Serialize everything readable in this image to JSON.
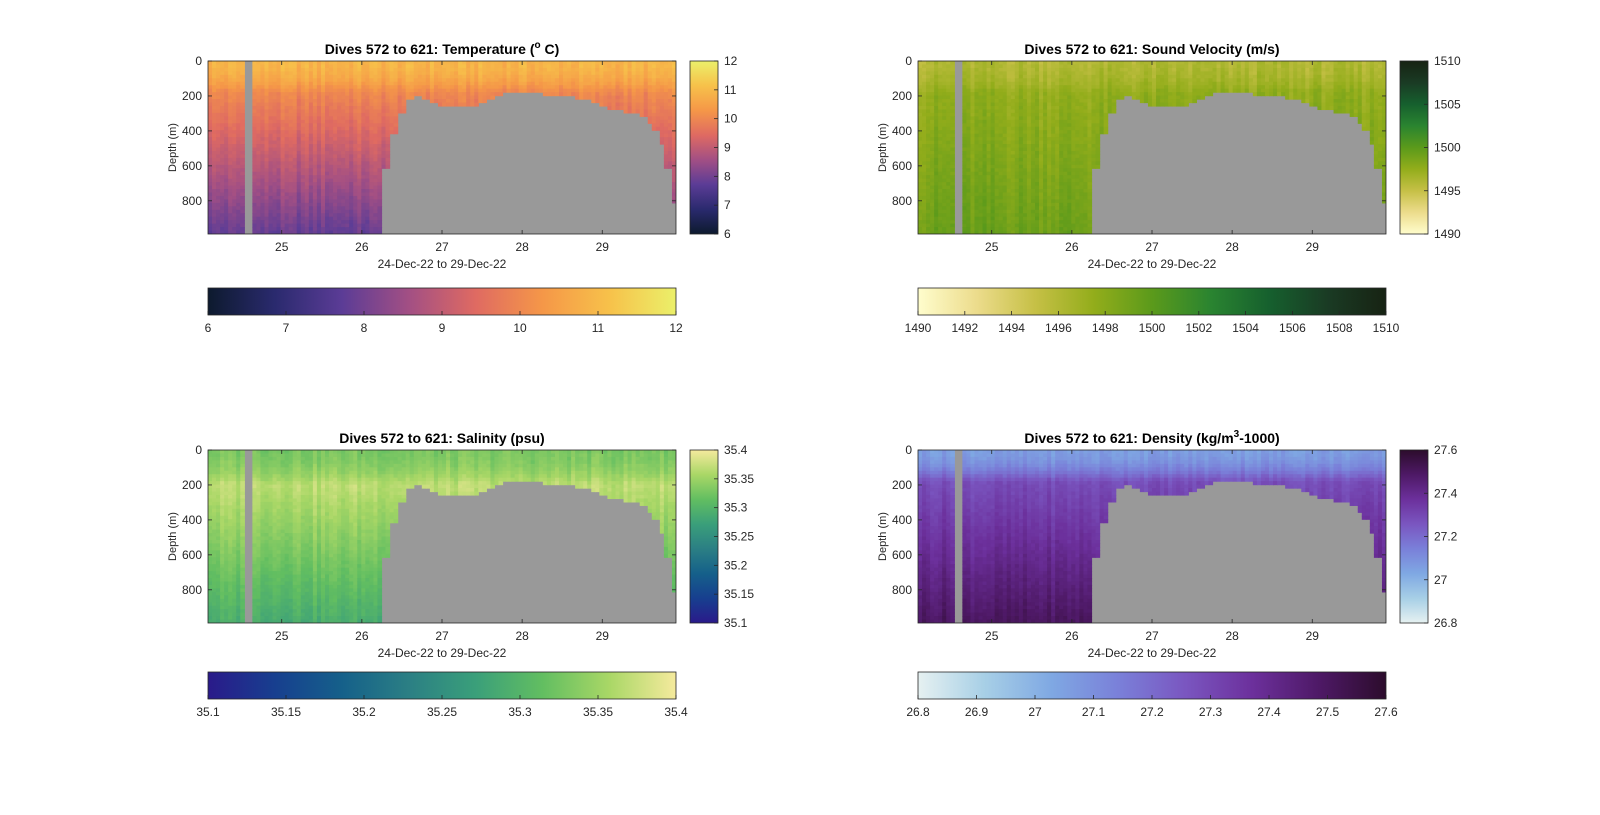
{
  "chart_data": [
    {
      "type": "heatmap",
      "title": "Dives 572 to 621: Temperature (",
      "title_sup": "o",
      "title_suffix": " C)",
      "xlabel": "24-Dec-22 to 29-Dec-22",
      "ylabel": "Depth (m)",
      "xlim": [
        24.08,
        29.92
      ],
      "ylim": [
        0,
        990
      ],
      "y_reversed": true,
      "x_ticks": [
        "25",
        "26",
        "27",
        "28",
        "29"
      ],
      "y_ticks": [
        "0",
        "200",
        "400",
        "600",
        "800"
      ],
      "colormap": "thermal",
      "colormap_stops": [
        "#0d1a2e",
        "#2a2a6e",
        "#5b3c96",
        "#a24f84",
        "#df6a62",
        "#f59748",
        "#f7c14a",
        "#ebf06a"
      ],
      "clim": [
        6,
        12
      ],
      "colorbar_right_ticks": [
        "6",
        "7",
        "8",
        "9",
        "10",
        "11",
        "12"
      ],
      "colorbar_bottom_ticks": [
        "6",
        "7",
        "8",
        "9",
        "10",
        "11",
        "12"
      ],
      "surface_value": 10.9,
      "mid_value": 10.0,
      "deep_value": 7.8,
      "thermocline_depth": 180,
      "no_data_color": "#999999",
      "data_gap": [
        24.52,
        24.62
      ]
    },
    {
      "type": "heatmap",
      "title": "Dives 572 to 621: Sound Velocity (m/s)",
      "title_sup": "",
      "title_suffix": "",
      "xlabel": "24-Dec-22 to 29-Dec-22",
      "ylabel": "Depth (m)",
      "xlim": [
        24.08,
        29.92
      ],
      "ylim": [
        0,
        990
      ],
      "y_reversed": true,
      "x_ticks": [
        "25",
        "26",
        "27",
        "28",
        "29"
      ],
      "y_ticks": [
        "0",
        "200",
        "400",
        "600",
        "800"
      ],
      "colormap": "speed",
      "colormap_stops": [
        "#fffdcd",
        "#ecdc8c",
        "#c6c046",
        "#93ad1b",
        "#5b9a1b",
        "#2a8430",
        "#16602e",
        "#1a3b24",
        "#172313"
      ],
      "clim": [
        1490,
        1510
      ],
      "colorbar_right_ticks": [
        "1490",
        "1495",
        "1500",
        "1505",
        "1510"
      ],
      "colorbar_bottom_ticks": [
        "1490",
        "1492",
        "1494",
        "1496",
        "1498",
        "1500",
        "1502",
        "1504",
        "1506",
        "1508",
        "1510"
      ],
      "surface_value": 1496.0,
      "mid_value": 1497.5,
      "deep_value": 1499.3,
      "thermocline_depth": 180,
      "no_data_color": "#999999",
      "data_gap": [
        24.52,
        24.62
      ]
    },
    {
      "type": "heatmap",
      "title": "Dives 572 to 621: Salinity (psu)",
      "title_sup": "",
      "title_suffix": "",
      "xlabel": "24-Dec-22 to 29-Dec-22",
      "ylabel": "Depth (m)",
      "xlim": [
        24.08,
        29.92
      ],
      "ylim": [
        0,
        990
      ],
      "y_reversed": true,
      "x_ticks": [
        "25",
        "26",
        "27",
        "28",
        "29"
      ],
      "y_ticks": [
        "0",
        "200",
        "400",
        "600",
        "800"
      ],
      "colormap": "haline",
      "colormap_stops": [
        "#2a1a8a",
        "#173f8f",
        "#15608a",
        "#2b7f84",
        "#3a9f7a",
        "#62be61",
        "#a9d766",
        "#f5ea9d"
      ],
      "clim": [
        35.1,
        35.4
      ],
      "colorbar_right_ticks": [
        "35.1",
        "35.15",
        "35.2",
        "35.25",
        "35.3",
        "35.35",
        "35.4"
      ],
      "colorbar_bottom_ticks": [
        "35.1",
        "35.15",
        "35.2",
        "35.25",
        "35.3",
        "35.35",
        "35.4"
      ],
      "surface_value": 35.33,
      "mid_value": 35.37,
      "deep_value": 35.29,
      "thermocline_depth": 200,
      "no_data_color": "#999999",
      "data_gap": [
        24.52,
        24.62
      ]
    },
    {
      "type": "heatmap",
      "title": "Dives 572 to 621: Density (kg/m",
      "title_sup": "3",
      "title_suffix": "-1000)",
      "xlabel": "24-Dec-22 to 29-Dec-22",
      "ylabel": "Depth (m)",
      "xlim": [
        24.08,
        29.92
      ],
      "ylim": [
        0,
        990
      ],
      "y_reversed": true,
      "x_ticks": [
        "25",
        "26",
        "27",
        "28",
        "29"
      ],
      "y_ticks": [
        "0",
        "200",
        "400",
        "600",
        "800"
      ],
      "colormap": "dense",
      "colormap_stops": [
        "#e6f1f1",
        "#a7cfe6",
        "#7fa8e3",
        "#7a80d9",
        "#7a56c0",
        "#6c309c",
        "#4e1966",
        "#2c0c2c"
      ],
      "clim": [
        26.8,
        27.6
      ],
      "colorbar_right_ticks": [
        "26.8",
        "27",
        "27.2",
        "27.4",
        "27.6"
      ],
      "colorbar_bottom_ticks": [
        "26.8",
        "26.9",
        "27",
        "27.1",
        "27.2",
        "27.3",
        "27.4",
        "27.5",
        "27.6"
      ],
      "surface_value": 27.06,
      "mid_value": 27.28,
      "deep_value": 27.5,
      "thermocline_depth": 180,
      "no_data_color": "#999999",
      "data_gap": [
        24.52,
        24.62
      ]
    }
  ],
  "seafloor": {
    "x": [
      26.27,
      26.35,
      26.45,
      26.55,
      26.65,
      26.75,
      26.85,
      26.95,
      27.05,
      27.15,
      27.25,
      27.35,
      27.45,
      27.55,
      27.65,
      27.75,
      27.85,
      27.95,
      28.05,
      28.15,
      28.25,
      28.35,
      28.45,
      28.55,
      28.65,
      28.75,
      28.85,
      28.95,
      29.05,
      29.15,
      29.25,
      29.35,
      29.45,
      29.55,
      29.62,
      29.7,
      29.78,
      29.86
    ],
    "depth": [
      620,
      410,
      290,
      210,
      200,
      215,
      230,
      250,
      255,
      265,
      260,
      250,
      235,
      215,
      195,
      185,
      180,
      178,
      180,
      185,
      190,
      195,
      200,
      205,
      215,
      225,
      240,
      255,
      270,
      285,
      290,
      300,
      320,
      350,
      400,
      470,
      610,
      810
    ]
  }
}
